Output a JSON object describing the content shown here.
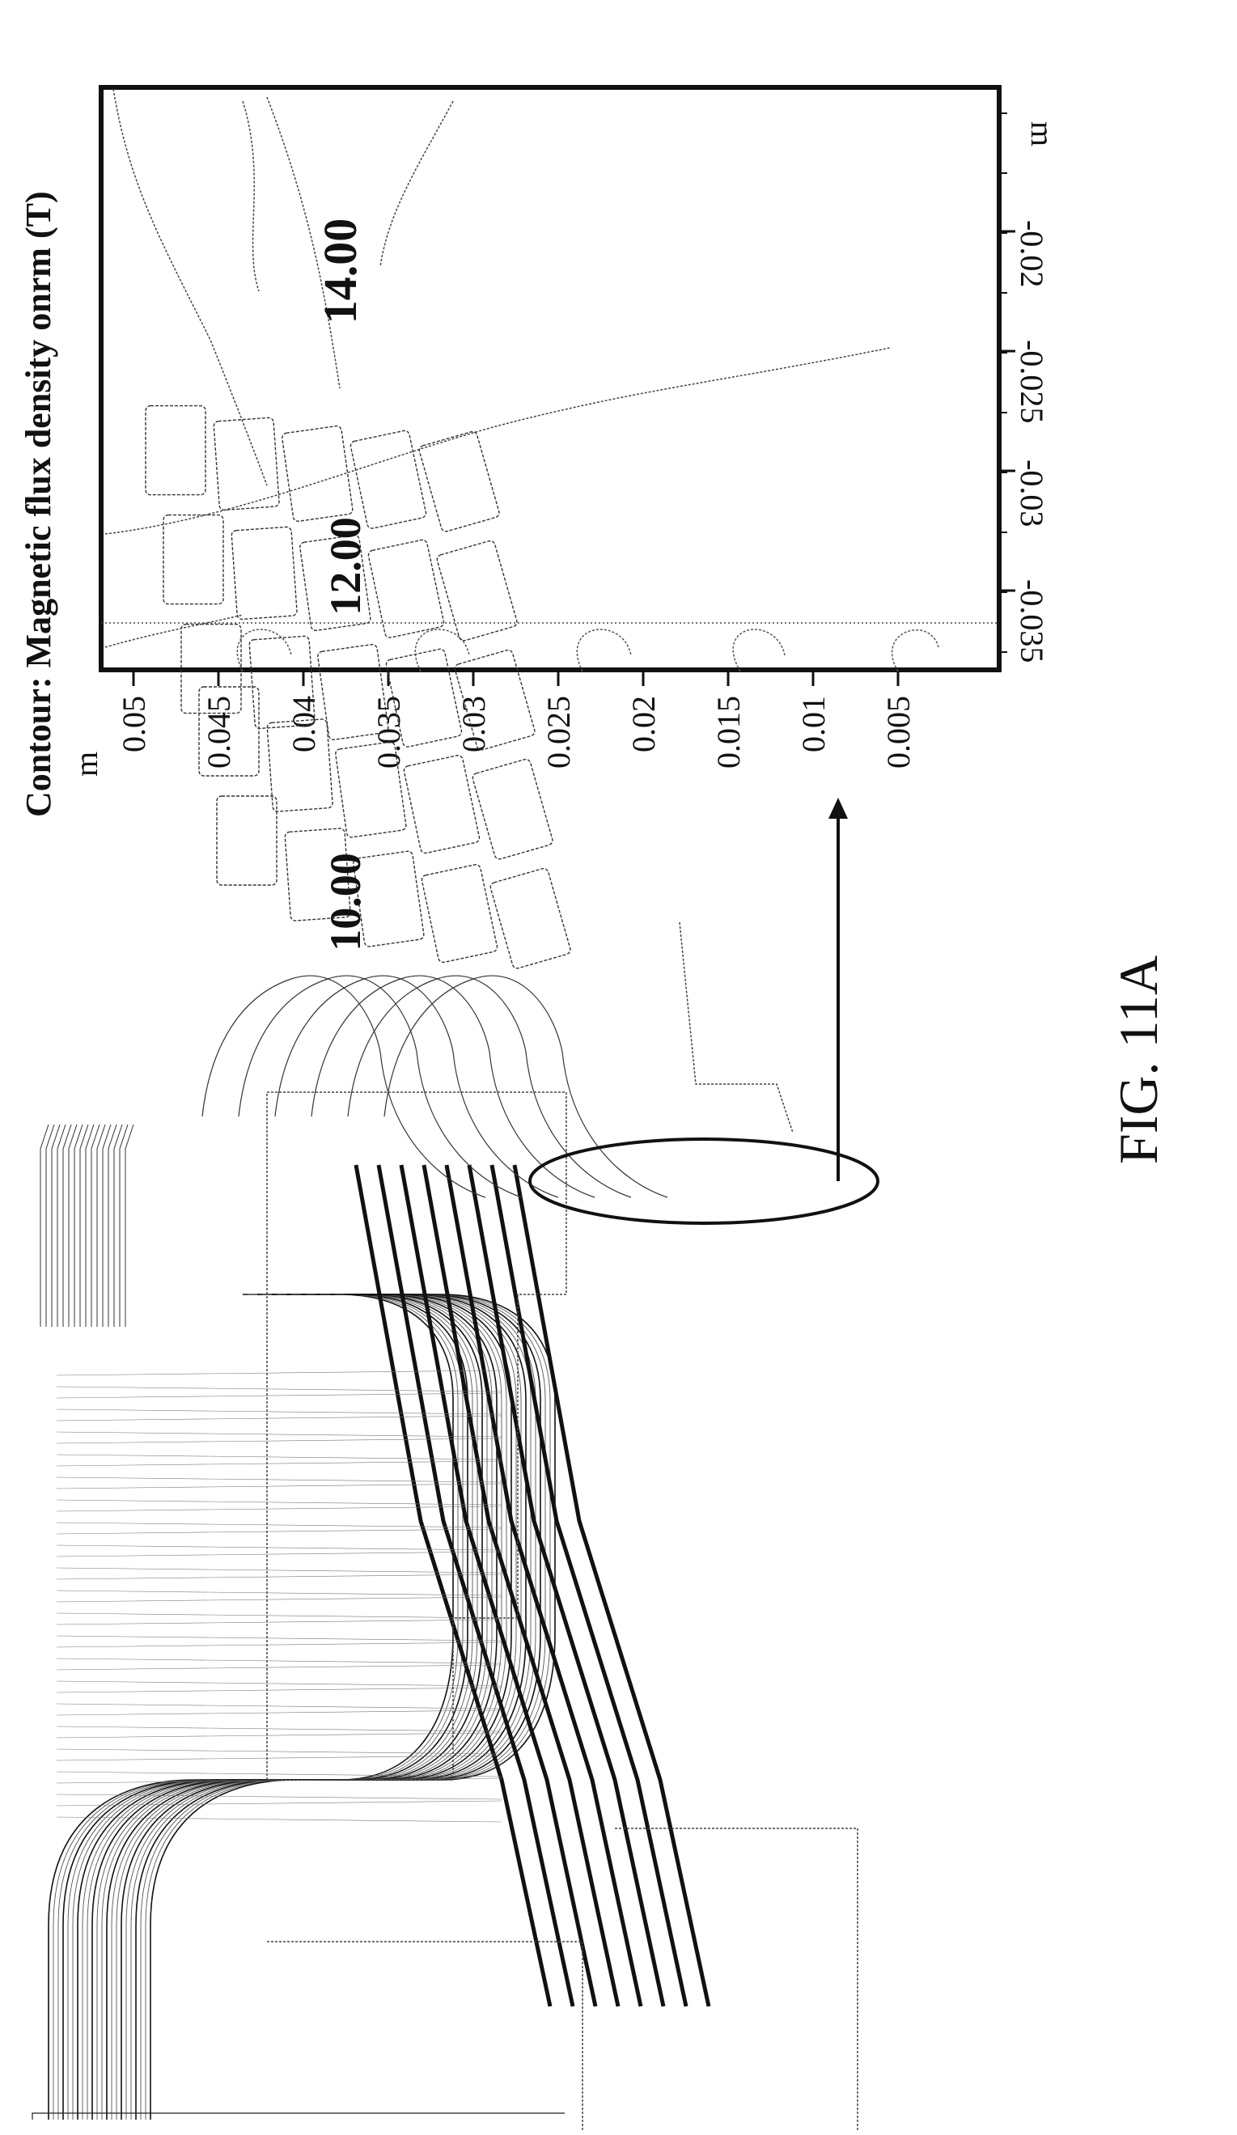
{
  "figure_label": "FIG. 11A",
  "contour_plot": {
    "title": "Contour: Magnetic flux density onrm (T)",
    "axis_left_unit": "m",
    "axis_left_ticks": [
      "0.05",
      "0.045",
      "0.04",
      "0.035",
      "0.03",
      "0.025",
      "0.02",
      "0.015",
      "0.01",
      "0.005"
    ],
    "axis_bottom_unit": "m",
    "axis_bottom_ticks": [
      "-0.035",
      "-0.03",
      "-0.025",
      "-0.02"
    ],
    "contour_labels": [
      "14.00",
      "12.00",
      "10.00"
    ]
  },
  "colors": {
    "ink": "#111111",
    "faint": "#555555",
    "paper": "#ffffff"
  }
}
